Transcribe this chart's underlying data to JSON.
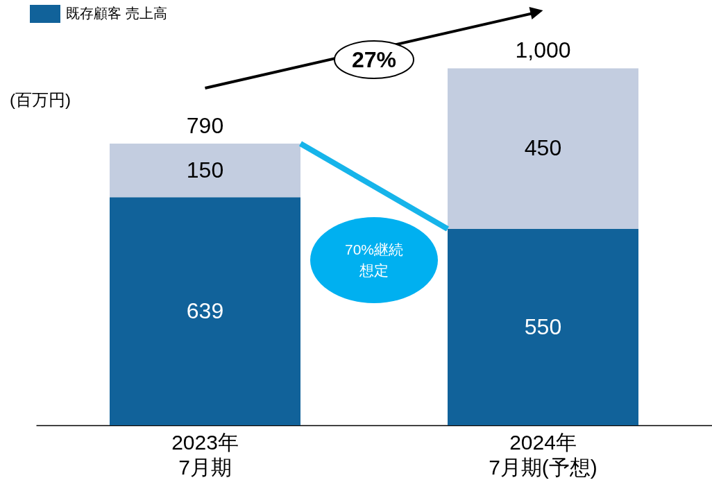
{
  "chart_data": {
    "type": "bar",
    "stacked": true,
    "categories": [
      "2023年\n7月期",
      "2024年\n7月期(予想)"
    ],
    "series": [
      {
        "name": "既存顧客 売上高",
        "color": "#11629a",
        "values": [
          639,
          550
        ]
      },
      {
        "color": "#c3cde0",
        "values": [
          150,
          450
        ]
      }
    ],
    "ylabel": "(百万円)",
    "totals": [
      "790",
      "1,000"
    ],
    "data_labels": true,
    "legend": "top left",
    "tick_labels": "x",
    "annotations": [
      "27%",
      "70%継続想定"
    ]
  }
}
